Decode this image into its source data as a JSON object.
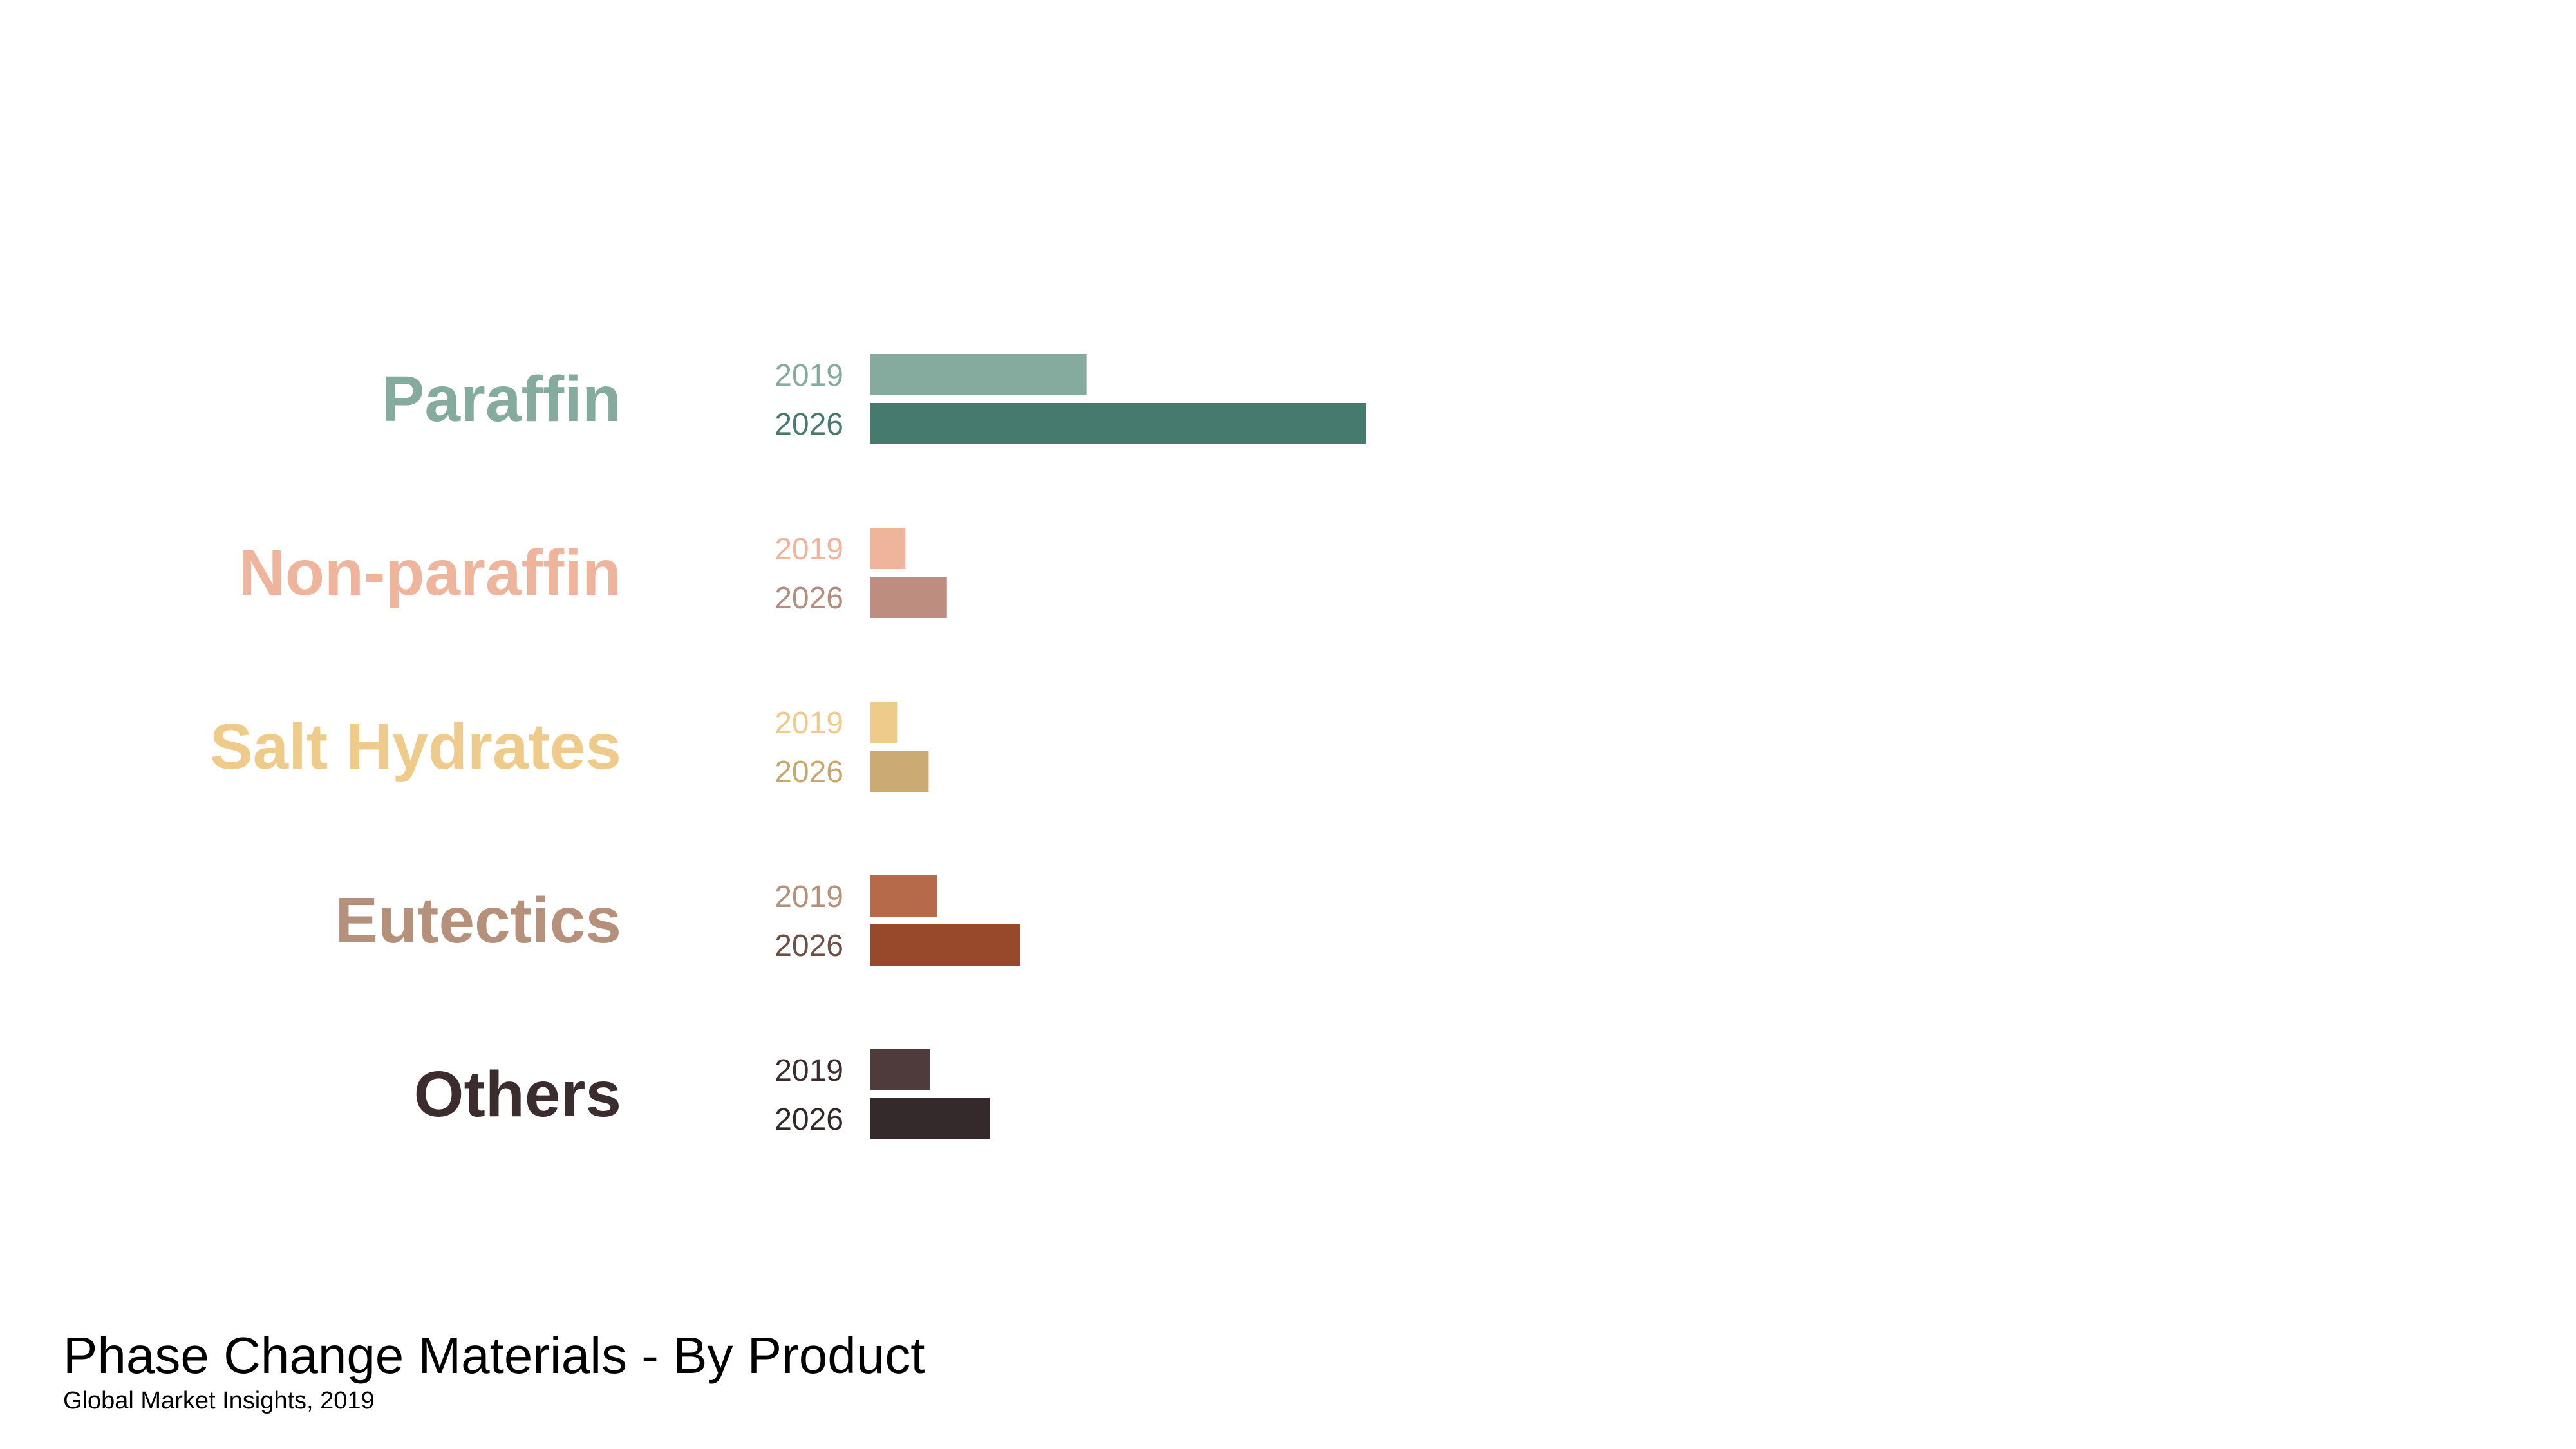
{
  "chart_data": {
    "type": "bar",
    "orientation": "horizontal",
    "categories": [
      "Paraffin",
      "Non-paraffin",
      "Salt Hydrates",
      "Eutectics",
      "Others"
    ],
    "series": [
      {
        "name": "2019",
        "values": [
          65,
          10.5,
          8,
          20,
          18
        ]
      },
      {
        "name": "2026",
        "values": [
          149,
          23,
          17.5,
          45,
          36
        ]
      }
    ],
    "xlim": [
      0,
      160
    ],
    "grid": false,
    "legend": "none",
    "colors": {
      "category_label": [
        "#85ab9f",
        "#efb49c",
        "#efcb8b",
        "#b5917c",
        "#3b2d2e"
      ],
      "year_label_2019": [
        "#85ab9f",
        "#efb49c",
        "#efcb8b",
        "#b5917c",
        "#3b2d2e"
      ],
      "year_label_2026": [
        "#477a6e",
        "#b38d7f",
        "#c7a670",
        "#6b5045",
        "#2f2626"
      ],
      "bar_2019": [
        "#85ab9f",
        "#efb49c",
        "#efcb8b",
        "#b76a4a",
        "#4f3b3c"
      ],
      "bar_2026": [
        "#477a6e",
        "#bd8e7f",
        "#cbaa73",
        "#98492b",
        "#342a2b"
      ]
    }
  },
  "footer": {
    "title": "Phase Change Materials - By Product",
    "source": "Global Market Insights, 2019"
  }
}
